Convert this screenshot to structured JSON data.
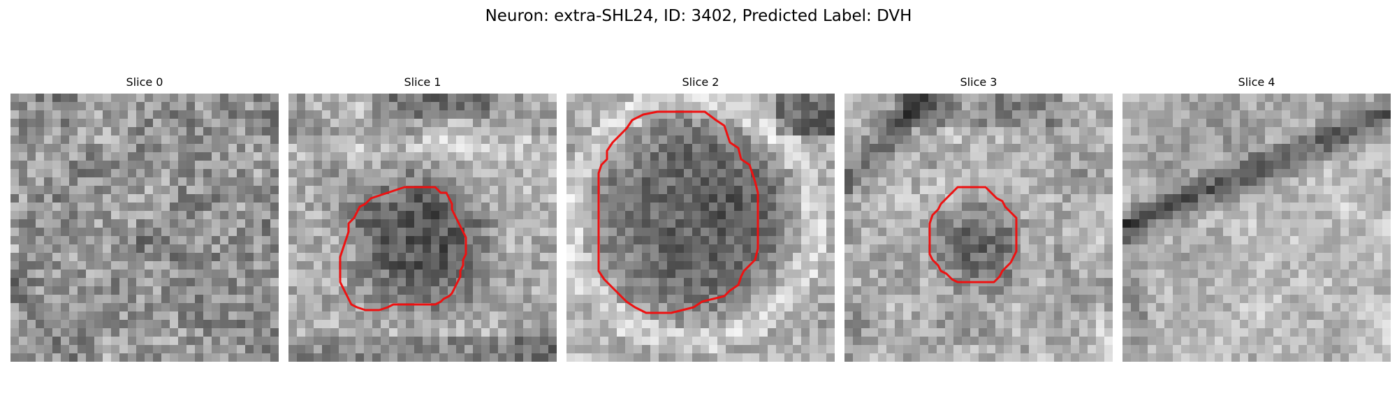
{
  "figure": {
    "title": "Neuron: extra-SHL24, ID: 3402, Predicted Label: DVH",
    "contour_color": "#ee1111"
  },
  "panels": [
    {
      "title": "Slice 0",
      "has_contour": false
    },
    {
      "title": "Slice 1",
      "has_contour": true
    },
    {
      "title": "Slice 2",
      "has_contour": true
    },
    {
      "title": "Slice 3",
      "has_contour": true
    },
    {
      "title": "Slice 4",
      "has_contour": false
    }
  ]
}
